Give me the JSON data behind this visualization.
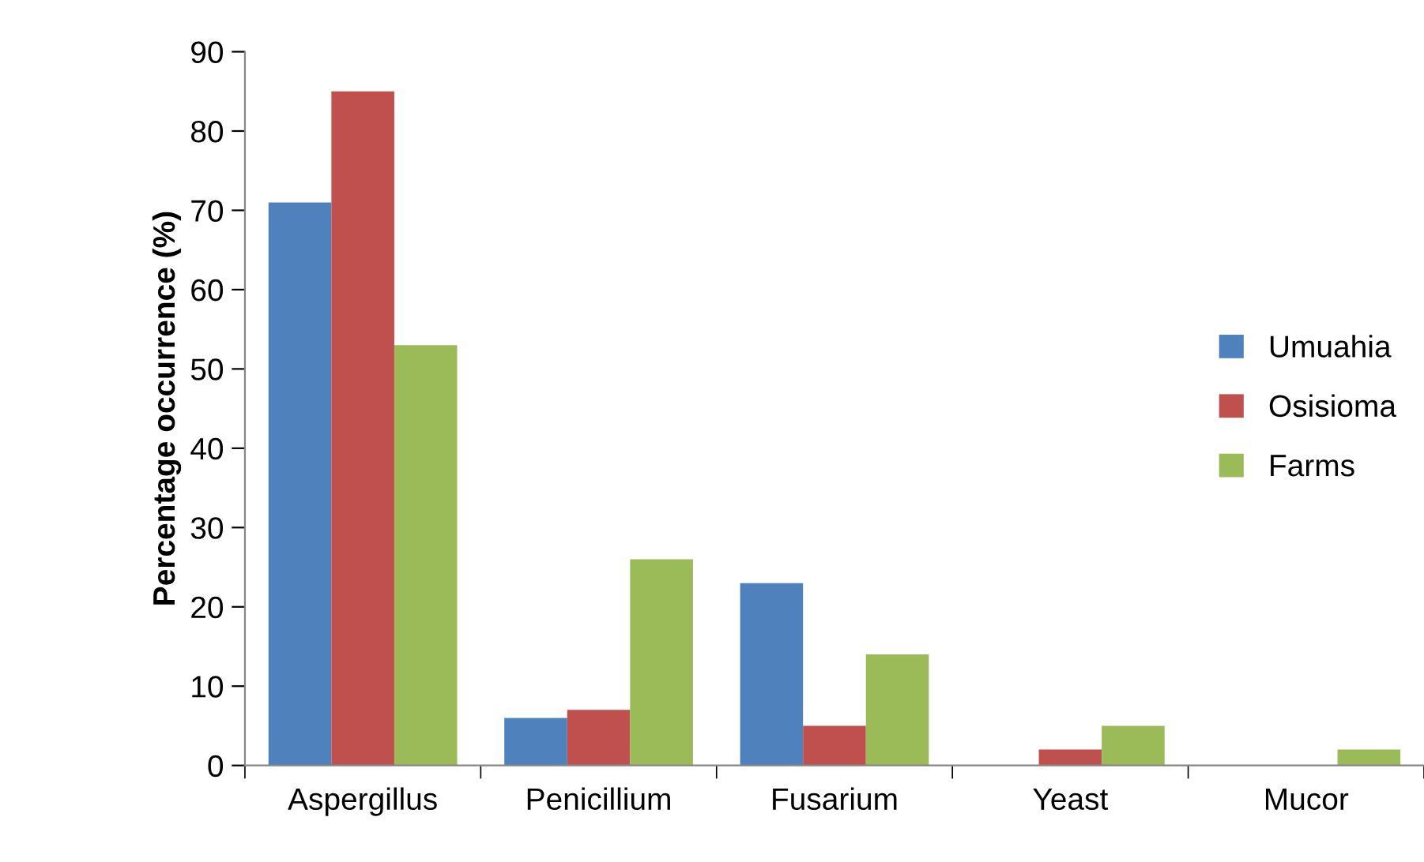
{
  "chart_data": {
    "type": "bar",
    "ylabel": "Percentage occurrence (%)",
    "categories": [
      "Aspergillus",
      "Penicillium",
      "Fusarium",
      "Yeast",
      "Mucor"
    ],
    "series": [
      {
        "name": "Umuahia",
        "color": "#4f81bd",
        "values": [
          71,
          6,
          23,
          0,
          0
        ]
      },
      {
        "name": "Osisioma",
        "color": "#c0504d",
        "values": [
          85,
          7,
          5,
          2,
          0
        ]
      },
      {
        "name": "Farms",
        "color": "#9bbb59",
        "values": [
          53,
          26,
          14,
          5,
          2
        ]
      }
    ],
    "ylim": [
      0,
      90
    ],
    "yticks": [
      0,
      10,
      20,
      30,
      40,
      50,
      60,
      70,
      80,
      90
    ],
    "grid": false,
    "legend": "right"
  }
}
